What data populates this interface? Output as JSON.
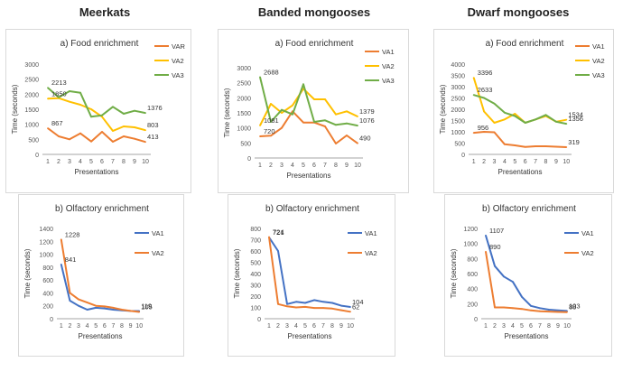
{
  "columns": [
    {
      "title": "Meerkats"
    },
    {
      "title": "Banded mongooses"
    },
    {
      "title": "Dwarf mongooses"
    }
  ],
  "colors": {
    "orange": "#ED7D31",
    "yellow": "#FFC000",
    "green": "#70AD47",
    "blue": "#4472C4",
    "axis": "#888888",
    "text": "#333333"
  },
  "chart_data": [
    {
      "type": "line",
      "title": "a) Food enrichment",
      "xlabel": "Presentations",
      "ylabel": "Time (seconds)",
      "x": [
        1,
        2,
        3,
        4,
        5,
        6,
        7,
        8,
        9,
        10
      ],
      "ylim": [
        0,
        3000
      ],
      "yticks": [
        0,
        500,
        1000,
        1500,
        2000,
        2500,
        3000
      ],
      "series": [
        {
          "name": "VAR",
          "color": "#ED7D31",
          "values": [
            867,
            600,
            500,
            700,
            430,
            750,
            420,
            600,
            520,
            413
          ]
        },
        {
          "name": "VA2",
          "color": "#FFC000",
          "values": [
            1850,
            1870,
            1750,
            1650,
            1500,
            1250,
            780,
            930,
            900,
            803
          ]
        },
        {
          "name": "VA3",
          "color": "#70AD47",
          "values": [
            2213,
            1900,
            2100,
            2050,
            1250,
            1300,
            1580,
            1350,
            1450,
            1376
          ]
        }
      ],
      "annotations": [
        {
          "text": "2213",
          "series": 2,
          "index": 0
        },
        {
          "text": "1850",
          "series": 1,
          "index": 0
        },
        {
          "text": "867",
          "series": 0,
          "index": 0
        },
        {
          "text": "1376",
          "series": 2,
          "index": 9
        },
        {
          "text": "803",
          "series": 1,
          "index": 9
        },
        {
          "text": "413",
          "series": 0,
          "index": 9
        }
      ]
    },
    {
      "type": "line",
      "title": "a) Food enrichment",
      "xlabel": "Presentations",
      "ylabel": "Time (seconds)",
      "x": [
        1,
        2,
        3,
        4,
        5,
        6,
        7,
        8,
        9,
        10
      ],
      "ylim": [
        0,
        3000
      ],
      "yticks": [
        0,
        500,
        1000,
        1500,
        2000,
        2500,
        3000
      ],
      "series": [
        {
          "name": "VA1",
          "color": "#ED7D31",
          "values": [
            720,
            740,
            1000,
            1550,
            1180,
            1180,
            1050,
            480,
            750,
            490
          ]
        },
        {
          "name": "VA2",
          "color": "#FFC000",
          "values": [
            1081,
            1800,
            1500,
            1750,
            2300,
            1950,
            1950,
            1450,
            1550,
            1379
          ]
        },
        {
          "name": "VA3",
          "color": "#70AD47",
          "values": [
            2688,
            1200,
            1600,
            1450,
            2450,
            1200,
            1250,
            1100,
            1150,
            1076
          ]
        }
      ],
      "annotations": [
        {
          "text": "2688",
          "series": 2,
          "index": 0
        },
        {
          "text": "1081",
          "series": 1,
          "index": 0
        },
        {
          "text": "720",
          "series": 0,
          "index": 0
        },
        {
          "text": "1379",
          "series": 1,
          "index": 9
        },
        {
          "text": "1076",
          "series": 2,
          "index": 9
        },
        {
          "text": "490",
          "series": 0,
          "index": 9
        }
      ]
    },
    {
      "type": "line",
      "title": "a) Food enrichment",
      "xlabel": "Presentations",
      "ylabel": "Time (seconds)",
      "x": [
        1,
        2,
        3,
        4,
        5,
        6,
        7,
        8,
        9,
        10
      ],
      "ylim": [
        0,
        4000
      ],
      "yticks": [
        0,
        500,
        1000,
        1500,
        2000,
        2500,
        3000,
        3500,
        4000
      ],
      "series": [
        {
          "name": "VA1",
          "color": "#ED7D31",
          "values": [
            956,
            1000,
            980,
            450,
            400,
            330,
            360,
            360,
            340,
            319
          ]
        },
        {
          "name": "VA2",
          "color": "#FFC000",
          "values": [
            3396,
            1900,
            1400,
            1550,
            1800,
            1400,
            1550,
            1700,
            1450,
            1534
          ]
        },
        {
          "name": "VA3",
          "color": "#70AD47",
          "values": [
            2633,
            2500,
            2250,
            1850,
            1700,
            1400,
            1550,
            1750,
            1450,
            1356
          ]
        }
      ],
      "annotations": [
        {
          "text": "3396",
          "series": 1,
          "index": 0
        },
        {
          "text": "2633",
          "series": 2,
          "index": 0
        },
        {
          "text": "956",
          "series": 0,
          "index": 0
        },
        {
          "text": "1356",
          "series": 2,
          "index": 9
        },
        {
          "text": "1534",
          "series": 1,
          "index": 9
        },
        {
          "text": "319",
          "series": 0,
          "index": 9
        }
      ]
    },
    {
      "type": "line",
      "title": "b) Olfactory enrichment",
      "xlabel": "Presentations",
      "ylabel": "Time (seconds)",
      "x": [
        1,
        2,
        3,
        4,
        5,
        6,
        7,
        8,
        9,
        10
      ],
      "ylim": [
        0,
        1400
      ],
      "yticks": [
        0,
        200,
        400,
        600,
        800,
        1000,
        1200,
        1400
      ],
      "series": [
        {
          "name": "VA1",
          "color": "#4472C4",
          "values": [
            841,
            280,
            200,
            140,
            170,
            160,
            140,
            130,
            120,
            119
          ]
        },
        {
          "name": "VA2",
          "color": "#ED7D31",
          "values": [
            1228,
            400,
            300,
            250,
            200,
            190,
            170,
            140,
            120,
            105
          ]
        }
      ],
      "annotations": [
        {
          "text": "1228",
          "series": 1,
          "index": 0
        },
        {
          "text": "841",
          "series": 0,
          "index": 0
        },
        {
          "text": "119",
          "series": 0,
          "index": 9
        },
        {
          "text": "105",
          "series": 1,
          "index": 9
        }
      ]
    },
    {
      "type": "line",
      "title": "b) Olfactory enrichment",
      "xlabel": "Presentations",
      "ylabel": "Time (seconds)",
      "x": [
        1,
        2,
        3,
        4,
        5,
        6,
        7,
        8,
        9,
        10
      ],
      "ylim": [
        0,
        800
      ],
      "yticks": [
        0,
        100,
        200,
        300,
        400,
        500,
        600,
        700,
        800
      ],
      "series": [
        {
          "name": "VA1",
          "color": "#4472C4",
          "values": [
            721,
            600,
            130,
            150,
            140,
            165,
            150,
            140,
            115,
            104
          ]
        },
        {
          "name": "VA2",
          "color": "#ED7D31",
          "values": [
            724,
            130,
            110,
            100,
            105,
            95,
            95,
            90,
            75,
            62
          ]
        }
      ],
      "annotations": [
        {
          "text": "724",
          "series": 1,
          "index": 0
        },
        {
          "text": "721",
          "series": 0,
          "index": 0
        },
        {
          "text": "104",
          "series": 0,
          "index": 9
        },
        {
          "text": "62",
          "series": 1,
          "index": 9
        }
      ]
    },
    {
      "type": "line",
      "title": "b) Olfactory enrichment",
      "xlabel": "Presentations",
      "ylabel": "Time (seconds)",
      "x": [
        1,
        2,
        3,
        4,
        5,
        6,
        7,
        8,
        9,
        10
      ],
      "ylim": [
        0,
        1200
      ],
      "yticks": [
        0,
        200,
        400,
        600,
        800,
        1000,
        1200
      ],
      "series": [
        {
          "name": "VA1",
          "color": "#4472C4",
          "values": [
            1107,
            700,
            560,
            490,
            290,
            170,
            140,
            120,
            110,
            103
          ]
        },
        {
          "name": "VA2",
          "color": "#ED7D31",
          "values": [
            890,
            150,
            150,
            140,
            130,
            110,
            100,
            95,
            90,
            88
          ]
        }
      ],
      "annotations": [
        {
          "text": "1107",
          "series": 0,
          "index": 0
        },
        {
          "text": "890",
          "series": 1,
          "index": 0
        },
        {
          "text": "103",
          "series": 0,
          "index": 9
        },
        {
          "text": "88",
          "series": 1,
          "index": 9
        }
      ]
    }
  ]
}
